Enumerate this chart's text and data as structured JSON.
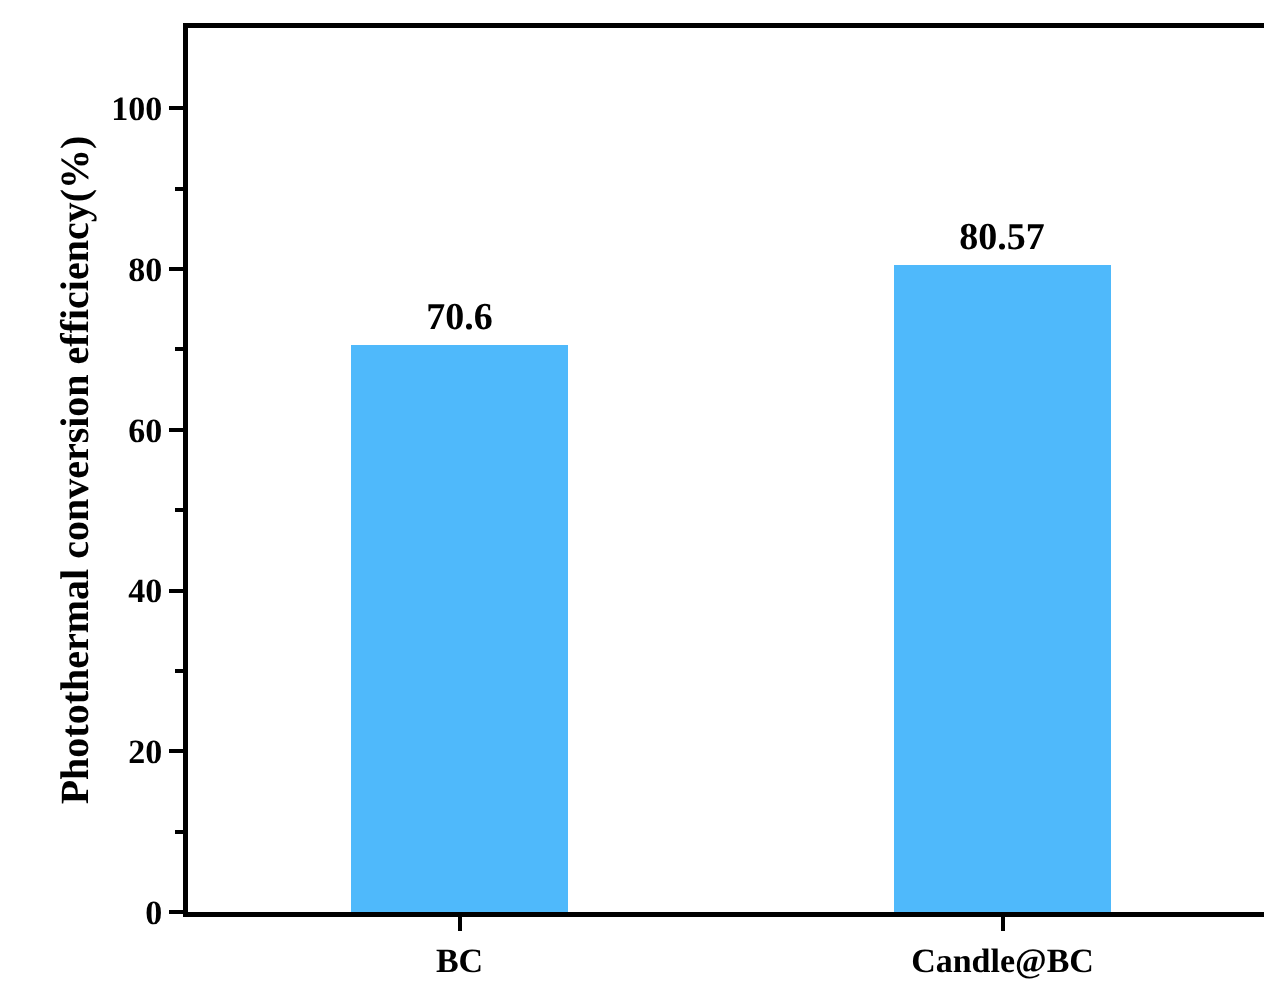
{
  "chart_data": {
    "type": "bar",
    "ylabel": "Photothermal conversion efficiency(%)",
    "categories": [
      "BC",
      "Candle@BC"
    ],
    "values": [
      70.6,
      80.57
    ],
    "color": "#4fb9fb",
    "ylim": [
      0,
      110
    ],
    "yticks": [
      0,
      {
        "value": 10,
        "label": null
      },
      20,
      {
        "value": 30,
        "label": null
      },
      40,
      {
        "value": 50,
        "label": null
      },
      60,
      {
        "value": 70,
        "label": null
      },
      80,
      {
        "value": 90,
        "label": null
      },
      100
    ],
    "data_labels": true,
    "grid": false,
    "legend": false
  }
}
